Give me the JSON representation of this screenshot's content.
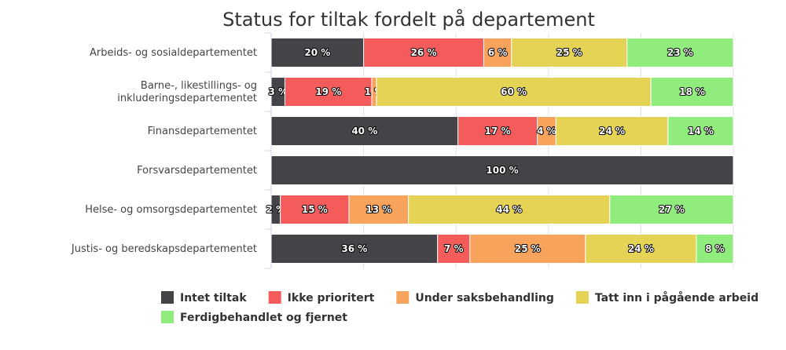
{
  "chart_data": {
    "type": "bar",
    "orientation": "horizontal",
    "stacking": "percent",
    "title": "Status for tiltak fordelt på departement",
    "categories": [
      [
        "Arbeids- og sosialdepartementet"
      ],
      [
        "Barne-, likestillings- og",
        "inkluderingsdepartementet"
      ],
      [
        "Finansdepartementet"
      ],
      [
        "Forsvarsdepartementet"
      ],
      [
        "Helse- og omsorgsdepartementet"
      ],
      [
        "Justis- og beredskapsdepartementet"
      ]
    ],
    "series": [
      {
        "name": "Intet tiltak",
        "color": "#434348",
        "values": [
          20,
          3,
          40,
          100,
          2,
          36
        ]
      },
      {
        "name": "Ikke prioritert",
        "color": "#f45b5b",
        "values": [
          26,
          19,
          17,
          0,
          15,
          7
        ]
      },
      {
        "name": "Under saksbehandling",
        "color": "#f7a35c",
        "values": [
          6,
          1,
          4,
          0,
          13,
          25
        ]
      },
      {
        "name": "Tatt inn i pågående arbeid",
        "color": "#e4d354",
        "values": [
          25,
          60,
          24,
          0,
          44,
          24
        ]
      },
      {
        "name": "Ferdigbehandlet og fjernet",
        "color": "#90ed7d",
        "values": [
          23,
          18,
          14,
          0,
          27,
          8
        ]
      }
    ],
    "value_suffix": " %",
    "xlim": [
      0,
      100
    ],
    "grid": true,
    "legend_position": "bottom"
  }
}
